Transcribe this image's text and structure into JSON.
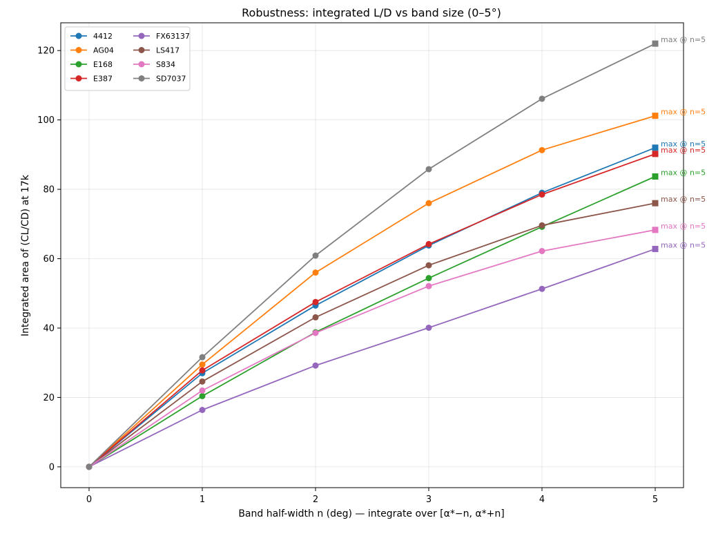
{
  "chart_data": {
    "type": "line",
    "title": "Robustness: integrated L/D vs band size (0–5°)",
    "xlabel": "Band half-width n (deg) — integrate over [α*−n, α*+n]",
    "ylabel": "Integrated area of (CL/CD) at 17k",
    "x": [
      0,
      1,
      2,
      3,
      4,
      5
    ],
    "xlim": [
      -0.25,
      5.25
    ],
    "ylim": [
      -6,
      128
    ],
    "xticks": [
      "0",
      "1",
      "2",
      "3",
      "4",
      "5"
    ],
    "yticks": [
      "0",
      "20",
      "40",
      "60",
      "80",
      "100",
      "120"
    ],
    "grid": true,
    "legend_position": "top-left",
    "legend_columns": 2,
    "series": [
      {
        "name": "4412",
        "color": "#1f77b4",
        "values": [
          0,
          27.0,
          46.5,
          63.8,
          79.0,
          92.0
        ],
        "annotation": "max @ n=5"
      },
      {
        "name": "AG04",
        "color": "#ff7f0e",
        "values": [
          0,
          29.5,
          56.0,
          76.0,
          91.3,
          101.2
        ],
        "annotation": "max @ n=5"
      },
      {
        "name": "E168",
        "color": "#2ca02c",
        "values": [
          0,
          20.4,
          38.8,
          54.4,
          69.2,
          83.7
        ],
        "annotation": "max @ n=5"
      },
      {
        "name": "E387",
        "color": "#d62728",
        "values": [
          0,
          27.8,
          47.5,
          64.2,
          78.5,
          90.2
        ],
        "annotation": "max @ n=5"
      },
      {
        "name": "FX63137",
        "color": "#9467bd",
        "values": [
          0,
          16.4,
          29.2,
          40.1,
          51.3,
          62.8
        ],
        "annotation": "max @ n=5"
      },
      {
        "name": "LS417",
        "color": "#8c564b",
        "values": [
          0,
          24.6,
          43.1,
          58.1,
          69.6,
          76.0
        ],
        "annotation": "max @ n=5"
      },
      {
        "name": "S834",
        "color": "#e377c2",
        "values": [
          0,
          22.0,
          38.6,
          52.1,
          62.2,
          68.3
        ],
        "annotation": "max @ n=5"
      },
      {
        "name": "SD7037",
        "color": "#7f7f7f",
        "values": [
          0,
          31.6,
          60.9,
          85.8,
          106.1,
          122.0
        ],
        "annotation": "max @ n=5"
      }
    ]
  }
}
